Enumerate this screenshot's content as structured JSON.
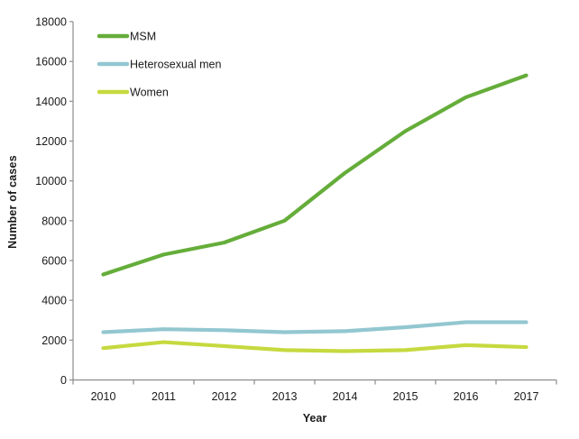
{
  "chart_data": {
    "type": "line",
    "title": "",
    "xlabel": "Year",
    "ylabel": "Number of cases",
    "categories": [
      "2010",
      "2011",
      "2012",
      "2013",
      "2014",
      "2015",
      "2016",
      "2017"
    ],
    "yticks": [
      "0",
      "2000",
      "4000",
      "6000",
      "8000",
      "10000",
      "12000",
      "14000",
      "16000",
      "18000"
    ],
    "ylim": [
      0,
      18000
    ],
    "grid": false,
    "legend_position": "top-left-inside",
    "series": [
      {
        "name": "MSM",
        "color": "#65AD3A",
        "values": [
          5300,
          6300,
          6900,
          8000,
          10400,
          12500,
          14200,
          15300
        ]
      },
      {
        "name": "Heterosexual men",
        "color": "#92C7D0",
        "values": [
          2400,
          2550,
          2500,
          2400,
          2450,
          2650,
          2900,
          2900
        ]
      },
      {
        "name": "Women",
        "color": "#C6D93F",
        "values": [
          1600,
          1900,
          1700,
          1500,
          1450,
          1500,
          1750,
          1650
        ]
      }
    ],
    "axis_color": "#8C8C8C",
    "text_color": "#1a1a1a"
  }
}
